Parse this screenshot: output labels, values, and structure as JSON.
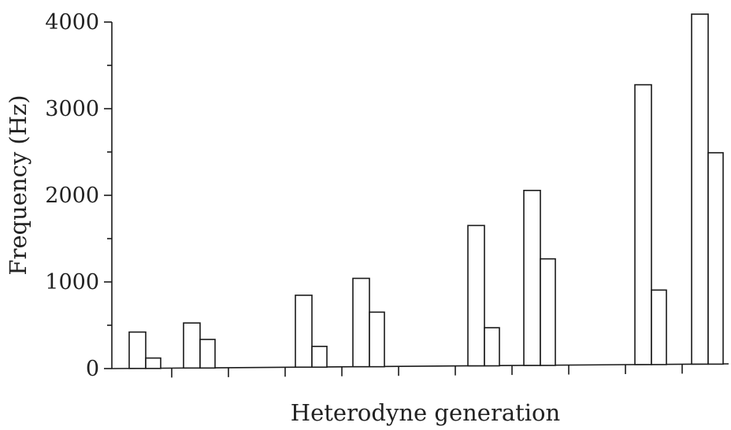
{
  "chart_data": {
    "type": "bar",
    "title": "",
    "xlabel": "Heterodyne generation",
    "ylabel": "Frequency (Hz)",
    "ylim": [
      0,
      4000
    ],
    "yticks": [
      0,
      1000,
      2000,
      3000,
      4000
    ],
    "ytick_labels": [
      "0",
      "1000",
      "2000",
      "3000",
      "4000"
    ],
    "grid": false,
    "legend": "none",
    "bar_pairs": [
      {
        "tall": 420,
        "short": 120
      },
      {
        "tall": 520,
        "short": 330
      },
      {
        "tall": 830,
        "short": 240
      },
      {
        "tall": 1020,
        "short": 630
      },
      {
        "tall": 1620,
        "short": 440
      },
      {
        "tall": 2020,
        "short": 1230
      },
      {
        "tall": 3230,
        "short": 860
      },
      {
        "tall": 4040,
        "short": 2440
      }
    ]
  }
}
